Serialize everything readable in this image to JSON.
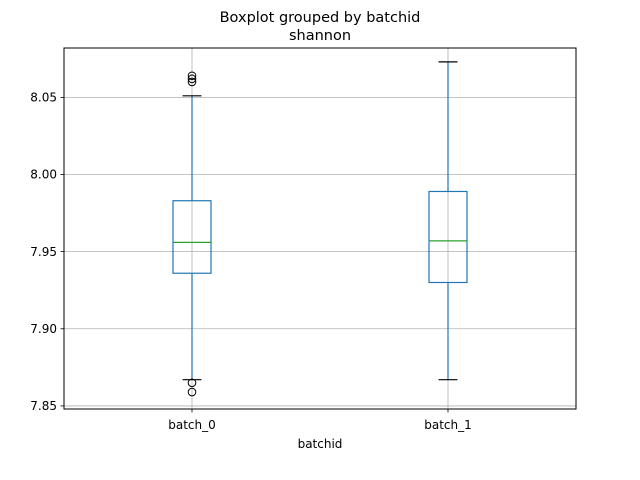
{
  "chart_data": {
    "type": "box",
    "suptitle": "Boxplot grouped by batchid",
    "title": "shannon",
    "xlabel": "batchid",
    "ylabel": "",
    "categories": [
      "batch_0",
      "batch_1"
    ],
    "ylim": [
      7.848,
      8.082
    ],
    "yticks": [
      7.85,
      7.9,
      7.95,
      8.0,
      8.05
    ],
    "ytick_labels": [
      "7.85",
      "7.90",
      "7.95",
      "8.00",
      "8.05"
    ],
    "grid": true,
    "boxes": [
      {
        "name": "batch_0",
        "whisker_low": 7.867,
        "q1": 7.936,
        "median": 7.956,
        "q3": 7.983,
        "whisker_high": 8.051,
        "outliers": [
          7.859,
          7.865,
          8.06,
          8.062,
          8.064
        ]
      },
      {
        "name": "batch_1",
        "whisker_low": 7.867,
        "q1": 7.93,
        "median": 7.957,
        "q3": 7.989,
        "whisker_high": 8.073,
        "outliers": []
      }
    ],
    "colors": {
      "box": "#1f77b4",
      "median": "#2ca02c",
      "grid": "#b0b0b0",
      "outlier": "#000000"
    }
  }
}
